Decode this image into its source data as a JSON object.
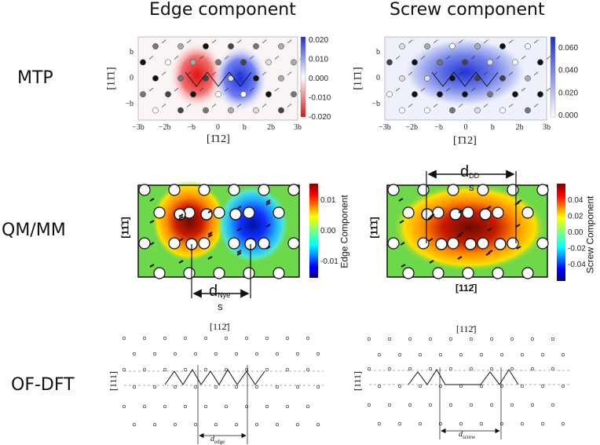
{
  "columns": {
    "edge": "Edge component",
    "screw": "Screw component"
  },
  "rows": {
    "mtp": "MTP",
    "qmmm": "QM/MM",
    "ofdft": "OF-DFT"
  },
  "mtp": {
    "x_ticks": [
      "−3b",
      "−2b",
      "−b",
      "0",
      "b",
      "2b",
      "3b"
    ],
    "y_ticks": [
      "b",
      "0",
      "−b"
    ],
    "x_label": "[1̄12]",
    "y_label": "[11̄1]",
    "edge_cbar": [
      "0.020",
      "0.010",
      "0.000",
      "-0.010",
      "-0.020"
    ],
    "screw_cbar": [
      "0.060",
      "0.040",
      "0.020",
      "0.000"
    ]
  },
  "qmmm": {
    "edge_cbar": [
      "0.01",
      "0.00",
      "-0.01"
    ],
    "edge_cbar_label": "Edge Component",
    "screw_cbar": [
      "0.04",
      "0.02",
      "0.00",
      "-0.02",
      "-0.04"
    ],
    "screw_cbar_label": "Screw Component",
    "y_label": "[11̄1̄]",
    "x_label_screw": "[112̄]",
    "d_nye": {
      "main": "d",
      "sub": "s",
      "sup": "Nye"
    },
    "d_dd": {
      "main": "d",
      "sub": "s",
      "sup": "DD"
    }
  },
  "ofdft": {
    "top_label": "[112̄]",
    "y_label": "[111]",
    "d_edge": {
      "main": "d",
      "sub": "edge"
    },
    "d_screw": {
      "main": "d",
      "sub": "screw"
    }
  },
  "colors": {
    "blue": "#1f3fd0",
    "red": "#d81818",
    "jet_bg": "#6cd84a"
  }
}
